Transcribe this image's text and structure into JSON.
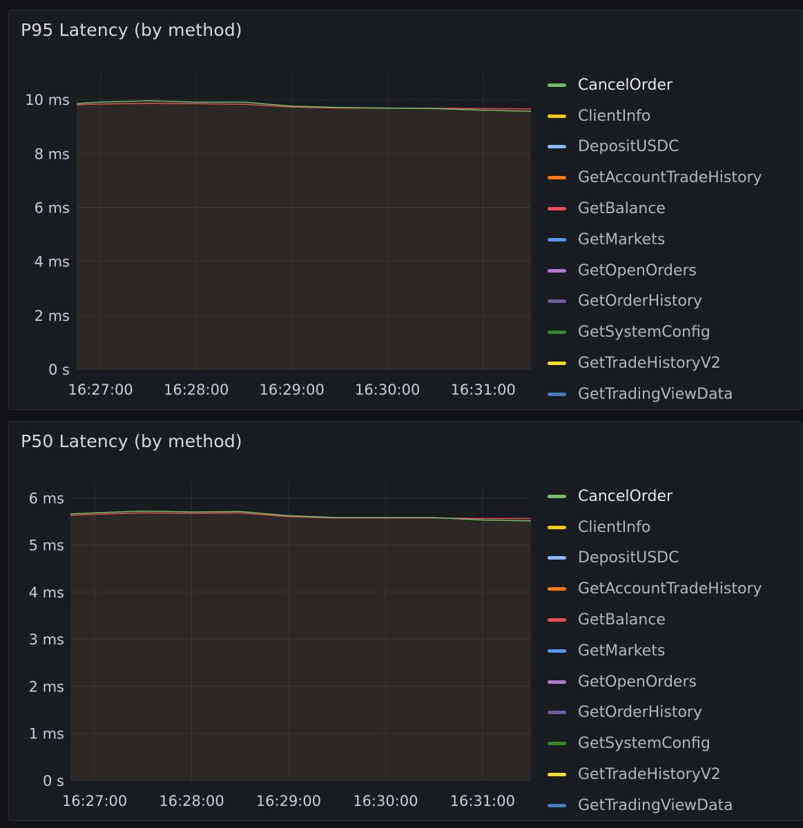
{
  "panels": [
    {
      "title": "P95 Latency (by method)",
      "chart_data": {
        "type": "line",
        "title": "P95 Latency (by method)",
        "x": [
          "16:26:45",
          "16:27:00",
          "16:27:30",
          "16:28:00",
          "16:28:30",
          "16:29:00",
          "16:29:30",
          "16:30:00",
          "16:30:30",
          "16:31:00",
          "16:31:30"
        ],
        "xticks": [
          "16:27:00",
          "16:28:00",
          "16:29:00",
          "16:30:00",
          "16:31:00"
        ],
        "yticks": [
          0,
          2,
          4,
          6,
          8,
          10
        ],
        "ytick_labels": [
          "0 s",
          "2 ms",
          "4 ms",
          "6 ms",
          "8 ms",
          "10 ms"
        ],
        "ylim": [
          0,
          11
        ],
        "ylabel": "",
        "xlabel": "",
        "fill": true,
        "grid": true,
        "legend_position": "right",
        "series": [
          {
            "name": "CancelOrder",
            "color": "#73bf69",
            "values": [
              9.85,
              9.9,
              9.95,
              9.9,
              9.9,
              9.75,
              9.7,
              9.68,
              9.66,
              9.6,
              9.56
            ]
          },
          {
            "name": "GetBalance",
            "color": "#f2495c",
            "values": [
              9.8,
              9.83,
              9.86,
              9.84,
              9.82,
              9.72,
              9.68,
              9.68,
              9.67,
              9.66,
              9.65
            ]
          }
        ]
      },
      "legend": [
        "CancelOrder",
        "ClientInfo",
        "DepositUSDC",
        "GetAccountTradeHistory",
        "GetBalance",
        "GetMarkets",
        "GetOpenOrders",
        "GetOrderHistory",
        "GetSystemConfig",
        "GetTradeHistoryV2",
        "GetTradingViewData"
      ]
    },
    {
      "title": "P50 Latency (by method)",
      "chart_data": {
        "type": "line",
        "title": "P50 Latency (by method)",
        "x": [
          "16:26:45",
          "16:27:00",
          "16:27:30",
          "16:28:00",
          "16:28:30",
          "16:29:00",
          "16:29:30",
          "16:30:00",
          "16:30:30",
          "16:31:00",
          "16:31:30"
        ],
        "xticks": [
          "16:27:00",
          "16:28:00",
          "16:29:00",
          "16:30:00",
          "16:31:00"
        ],
        "yticks": [
          0,
          1,
          2,
          3,
          4,
          5,
          6
        ],
        "ytick_labels": [
          "0 s",
          "1 ms",
          "2 ms",
          "3 ms",
          "4 ms",
          "5 ms",
          "6 ms"
        ],
        "ylim": [
          0,
          6.3
        ],
        "ylabel": "",
        "xlabel": "",
        "fill": true,
        "grid": true,
        "legend_position": "right",
        "series": [
          {
            "name": "CancelOrder",
            "color": "#73bf69",
            "values": [
              5.66,
              5.68,
              5.72,
              5.7,
              5.71,
              5.62,
              5.58,
              5.58,
              5.58,
              5.53,
              5.51
            ]
          },
          {
            "name": "GetBalance",
            "color": "#f2495c",
            "values": [
              5.63,
              5.65,
              5.68,
              5.67,
              5.68,
              5.6,
              5.57,
              5.57,
              5.57,
              5.56,
              5.56
            ]
          }
        ]
      },
      "legend": [
        "CancelOrder",
        "ClientInfo",
        "DepositUSDC",
        "GetAccountTradeHistory",
        "GetBalance",
        "GetMarkets",
        "GetOpenOrders",
        "GetOrderHistory",
        "GetSystemConfig",
        "GetTradeHistoryV2",
        "GetTradingViewData"
      ]
    }
  ],
  "legend_colors": {
    "CancelOrder": "#73bf69",
    "ClientInfo": "#f2cc0c",
    "DepositUSDC": "#8ab8ff",
    "GetAccountTradeHistory": "#ff780a",
    "GetBalance": "#f2495c",
    "GetMarkets": "#5794f2",
    "GetOpenOrders": "#b877d9",
    "GetOrderHistory": "#705da0",
    "GetSystemConfig": "#37872d",
    "GetTradeHistoryV2": "#fade2a",
    "GetTradingViewData": "#447ebc"
  }
}
